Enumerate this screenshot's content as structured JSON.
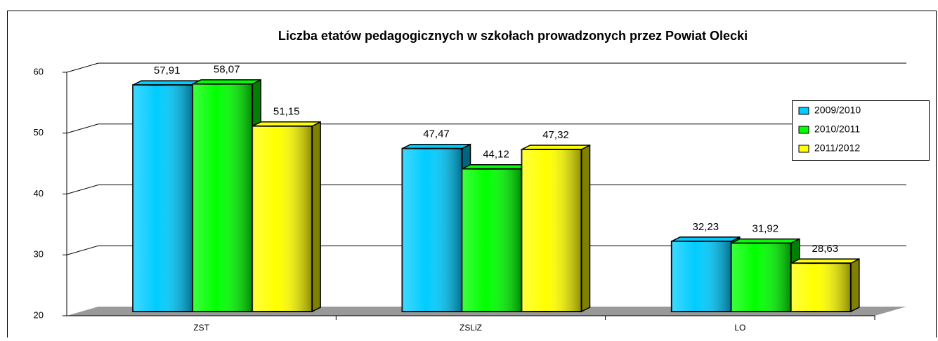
{
  "chart_data": {
    "type": "bar3d",
    "title": "Liczba etatów pedagogicznych w szkołach prowadzonych przez Powiat Olecki",
    "categories": [
      "ZST",
      "ZSLiZ",
      "LO"
    ],
    "series": [
      {
        "name": "2009/2010",
        "color": "#00ccff",
        "values": [
          57.91,
          47.47,
          32.23
        ],
        "value_labels": [
          "57,91",
          "47,47",
          "32,23"
        ]
      },
      {
        "name": "2010/2011",
        "color": "#00ff00",
        "values": [
          58.07,
          44.12,
          31.92
        ],
        "value_labels": [
          "58,07",
          "44,12",
          "31,92"
        ]
      },
      {
        "name": "2011/2012",
        "color": "#ffff00",
        "values": [
          51.15,
          47.32,
          28.63
        ],
        "value_labels": [
          "51,15",
          "47,32",
          "28,63"
        ]
      }
    ],
    "ylim": [
      20,
      60
    ],
    "yticks": [
      20,
      30,
      40,
      50,
      60
    ],
    "grid": true,
    "legend": "right"
  }
}
